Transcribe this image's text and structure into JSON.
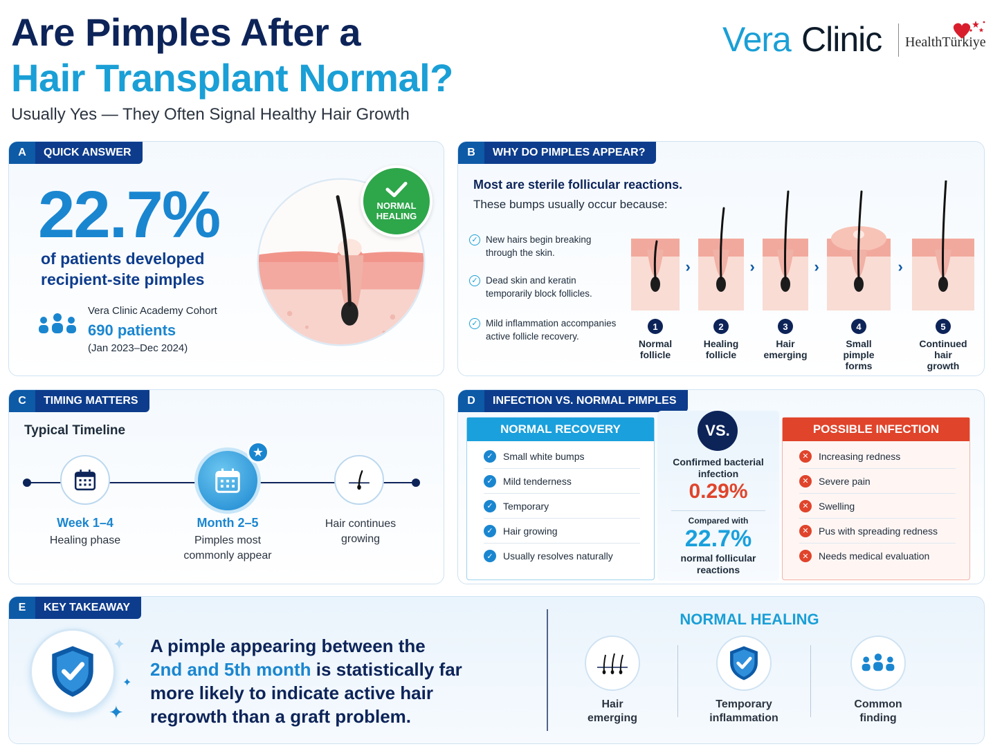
{
  "header": {
    "title_line1": "Are Pimples After a",
    "title_line2": "Hair Transplant Normal?",
    "subtitle": "Usually Yes — They Often Signal Healthy Hair Growth"
  },
  "logo": {
    "vera": "Vera",
    "clinic": "Clinic",
    "partner": "HealthTürkiye"
  },
  "panel_a": {
    "letter": "A",
    "title": "QUICK ANSWER",
    "percent": "22.7%",
    "desc_line1": "of patients developed",
    "desc_line2": "recipient-site pimples",
    "cohort_title": "Vera Clinic Academy Cohort",
    "cohort_patients": "690 patients",
    "cohort_dates": "(Jan 2023–Dec 2024)",
    "badge_line1": "NORMAL",
    "badge_line2": "HEALING"
  },
  "panel_b": {
    "letter": "B",
    "title": "WHY DO PIMPLES APPEAR?",
    "headline": "Most are sterile follicular reactions.",
    "sub": "These bumps usually occur because:",
    "reasons": [
      "New hairs begin breaking through the skin.",
      "Dead skin and keratin temporarily block follicles.",
      "Mild inflammation accompanies active follicle recovery."
    ],
    "stages": [
      {
        "num": "1",
        "l1": "Normal",
        "l2": "follicle",
        "l3": ""
      },
      {
        "num": "2",
        "l1": "Healing",
        "l2": "follicle",
        "l3": ""
      },
      {
        "num": "3",
        "l1": "Hair",
        "l2": "emerging",
        "l3": ""
      },
      {
        "num": "4",
        "l1": "Small",
        "l2": "pimple",
        "l3": "forms"
      },
      {
        "num": "5",
        "l1": "Continued",
        "l2": "hair",
        "l3": "growth"
      }
    ]
  },
  "panel_c": {
    "letter": "C",
    "title": "TIMING MATTERS",
    "subtitle": "Typical Timeline",
    "step1_title": "Week 1–4",
    "step1_desc": "Healing phase",
    "step2_title": "Month 2–5",
    "step2_desc1": "Pimples most",
    "step2_desc2": "commonly appear",
    "step3_desc1": "Hair continues",
    "step3_desc2": "growing"
  },
  "panel_d": {
    "letter": "D",
    "title": "INFECTION VS. NORMAL PIMPLES",
    "normal_head": "NORMAL RECOVERY",
    "normal_items": [
      "Small white bumps",
      "Mild tenderness",
      "Temporary",
      "Hair growing",
      "Usually resolves naturally"
    ],
    "vs": "VS.",
    "confirmed_l1": "Confirmed bacterial",
    "confirmed_l2": "infection",
    "infection_pct": "0.29%",
    "compared": "Compared with",
    "normal_pct": "22.7%",
    "normal_l1": "normal follicular",
    "normal_l2": "reactions",
    "infection_head": "POSSIBLE INFECTION",
    "infection_items": [
      "Increasing redness",
      "Severe pain",
      "Swelling",
      "Pus with spreading redness",
      "Needs medical evaluation"
    ]
  },
  "panel_e": {
    "letter": "E",
    "title": "KEY TAKEAWAY",
    "line1": "A pimple appearing between the",
    "line2_hl": "2nd and 5th month",
    "line2_rest": "is statistically far",
    "line3": "more likely to indicate active hair",
    "line4": "regrowth than a graft problem.",
    "nh_title": "NORMAL HEALING",
    "icons": [
      {
        "l1": "Hair",
        "l2": "emerging"
      },
      {
        "l1": "Temporary",
        "l2": "inflammation"
      },
      {
        "l1": "Common",
        "l2": "finding"
      }
    ]
  },
  "colors": {
    "navy": "#0d2459",
    "blue": "#1a86d0",
    "cyan": "#1a9fd6",
    "green": "#2ea64a",
    "red": "#e0442b"
  }
}
